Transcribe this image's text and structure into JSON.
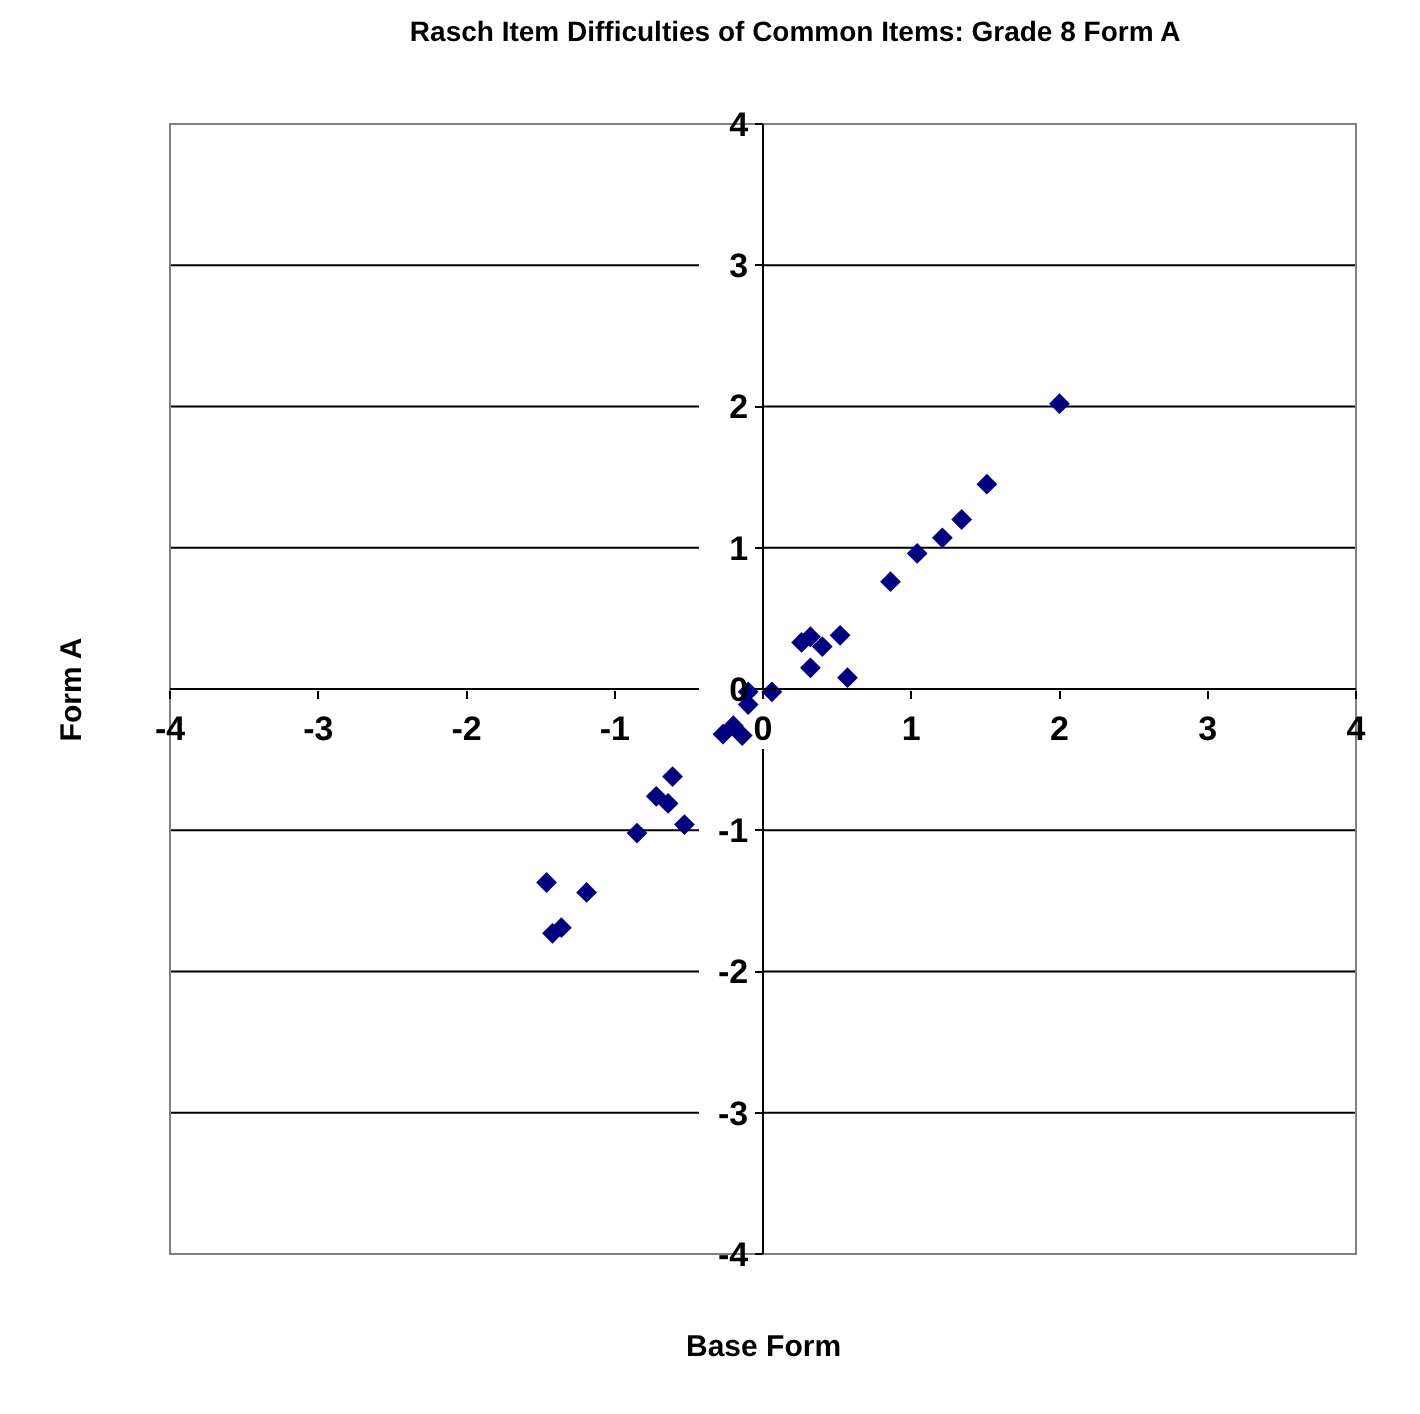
{
  "chart_data": {
    "type": "scatter",
    "title": "Rasch Item Difficulties of Common Items: Grade 8 Form A",
    "xlabel": "Base Form",
    "ylabel": "Form A",
    "x": [
      2.0,
      1.51,
      1.34,
      1.21,
      1.04,
      0.86,
      0.52,
      0.26,
      0.32,
      0.4,
      0.32,
      0.57,
      0.06,
      -0.1,
      -0.1,
      -0.27,
      -0.2,
      -0.14,
      -0.61,
      -0.72,
      -0.64,
      -0.53,
      -0.85,
      -1.46,
      -1.19,
      -1.36,
      -1.42
    ],
    "series": [
      {
        "color": "#000080",
        "values": [
          2.02,
          1.45,
          1.2,
          1.07,
          0.96,
          0.76,
          0.38,
          0.33,
          0.37,
          0.3,
          0.15,
          0.08,
          -0.02,
          -0.02,
          -0.11,
          -0.32,
          -0.26,
          -0.33,
          -0.62,
          -0.76,
          -0.81,
          -0.96,
          -1.02,
          -1.37,
          -1.44,
          -1.69,
          -1.73
        ]
      }
    ],
    "xlim": [
      -4,
      4
    ],
    "ylim": [
      -4,
      4
    ],
    "xticks": [
      -4,
      -3,
      -2,
      -1,
      0,
      1,
      2,
      3,
      4
    ],
    "yticks": [
      -4,
      -3,
      -2,
      -1,
      0,
      1,
      2,
      3,
      4
    ],
    "grid": "y",
    "marker": "diamond",
    "legend": false
  }
}
